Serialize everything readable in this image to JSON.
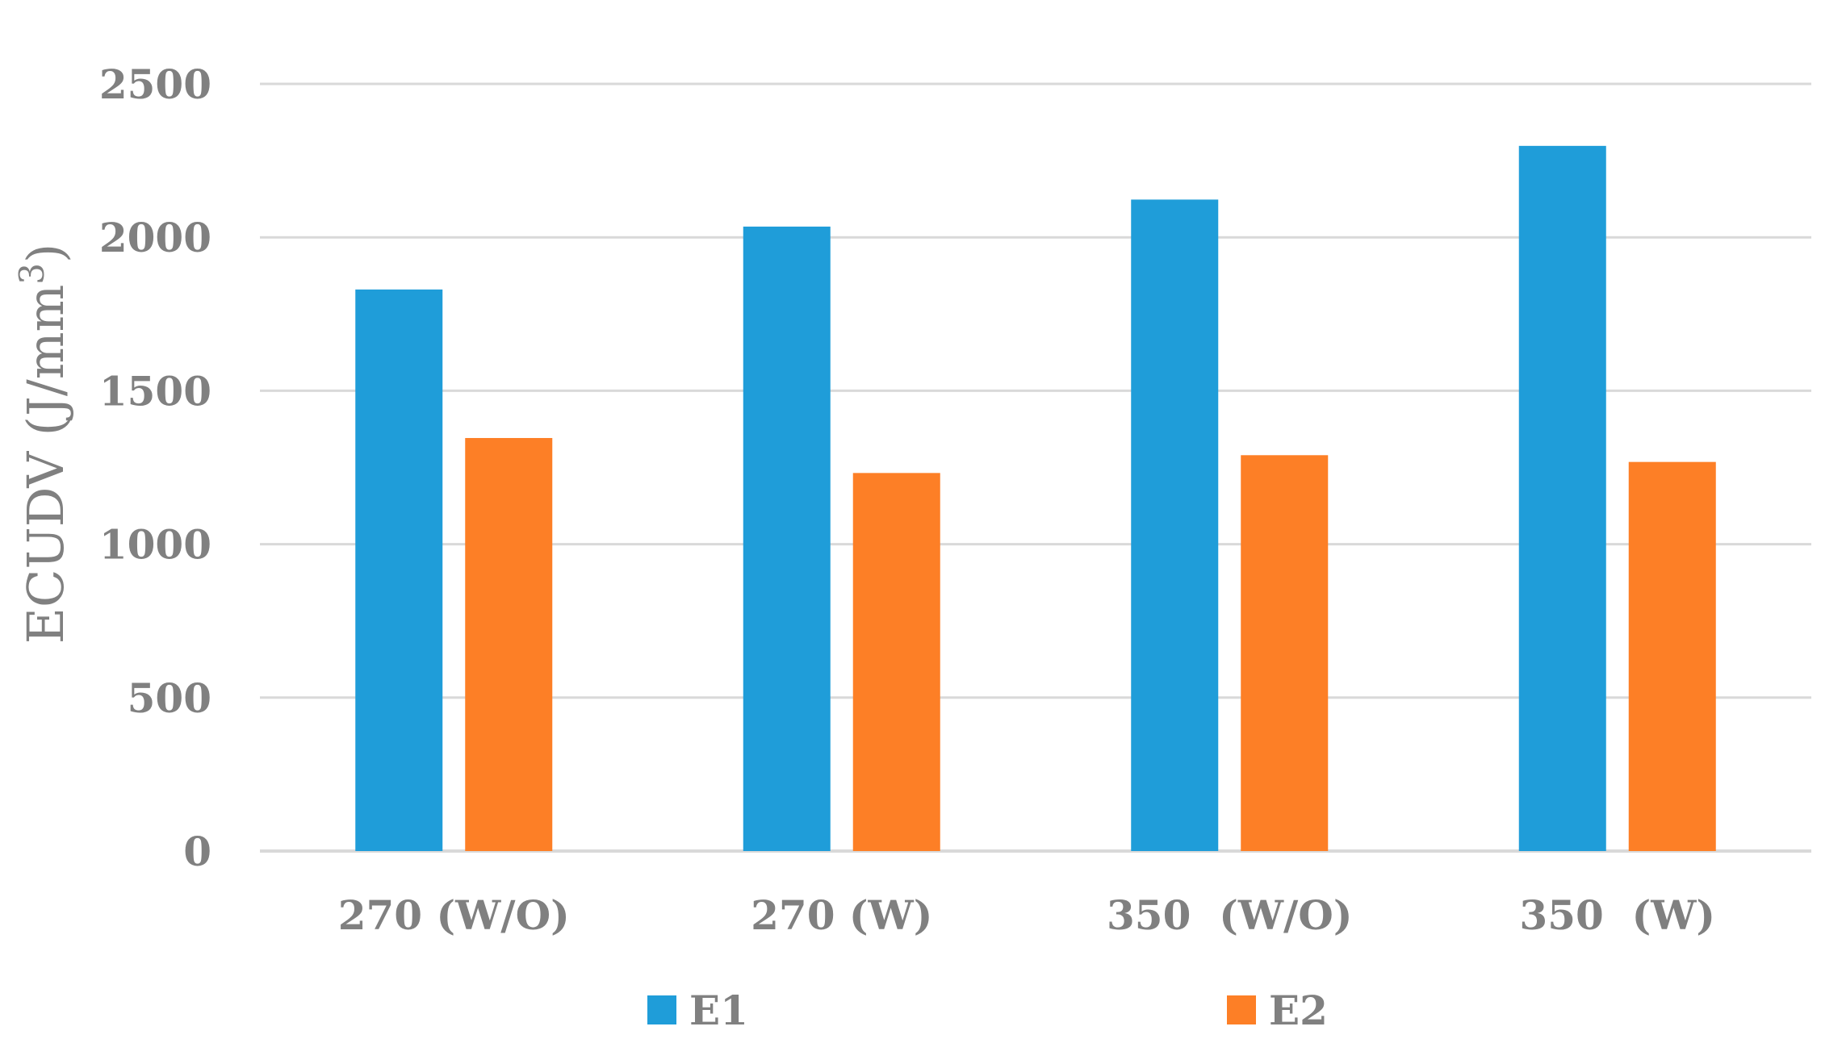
{
  "chart_data": {
    "type": "bar",
    "title": "",
    "xlabel": "",
    "ylabel": "ECUDV (J/mm",
    "ylabel_superscript": "3",
    "ylabel_suffix": ")",
    "categories": [
      "270 (W/O)",
      "270 (W)",
      "350  (W/O)",
      "350  (W)"
    ],
    "series": [
      {
        "name": "E1",
        "color": "#1f9dd9",
        "values": [
          1830,
          2035,
          2123,
          2298
        ]
      },
      {
        "name": "E2",
        "color": "#fd7f26",
        "values": [
          1346,
          1232,
          1290,
          1268
        ]
      }
    ],
    "ylim": [
      0,
      2500
    ],
    "yticks": [
      0,
      500,
      1000,
      1500,
      2000,
      2500
    ],
    "grid": true,
    "gridline_color": "#d9d9d9",
    "legend_position": "bottom"
  }
}
